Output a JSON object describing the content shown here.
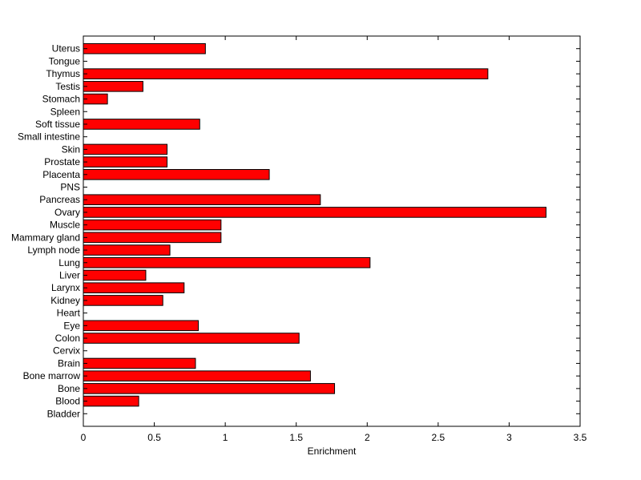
{
  "chart_data": {
    "type": "bar",
    "orientation": "horizontal",
    "title": "",
    "xlabel": "Enrichment",
    "ylabel": "",
    "xlim": [
      0,
      3.5
    ],
    "xticks": [
      0,
      0.5,
      1,
      1.5,
      2,
      2.5,
      3,
      3.5
    ],
    "xtick_labels": [
      "0",
      "0.5",
      "1",
      "1.5",
      "2",
      "2.5",
      "3",
      "3.5"
    ],
    "grid": false,
    "legend": "none",
    "bar_color": "#ff0000",
    "categories": [
      "Bladder",
      "Blood",
      "Bone",
      "Bone marrow",
      "Brain",
      "Cervix",
      "Colon",
      "Eye",
      "Heart",
      "Kidney",
      "Larynx",
      "Liver",
      "Lung",
      "Lymph node",
      "Mammary gland",
      "Muscle",
      "Ovary",
      "Pancreas",
      "PNS",
      "Placenta",
      "Prostate",
      "Skin",
      "Small intestine",
      "Soft tissue",
      "Spleen",
      "Stomach",
      "Testis",
      "Thymus",
      "Tongue",
      "Uterus"
    ],
    "values": [
      0,
      0.39,
      1.77,
      1.6,
      0.79,
      0,
      1.52,
      0.81,
      0,
      0.56,
      0.71,
      0.44,
      2.02,
      0.61,
      0.97,
      0.97,
      3.26,
      1.67,
      0,
      1.31,
      0.59,
      0.59,
      0,
      0.82,
      0,
      0.17,
      0.42,
      2.85,
      0,
      0.86
    ]
  }
}
